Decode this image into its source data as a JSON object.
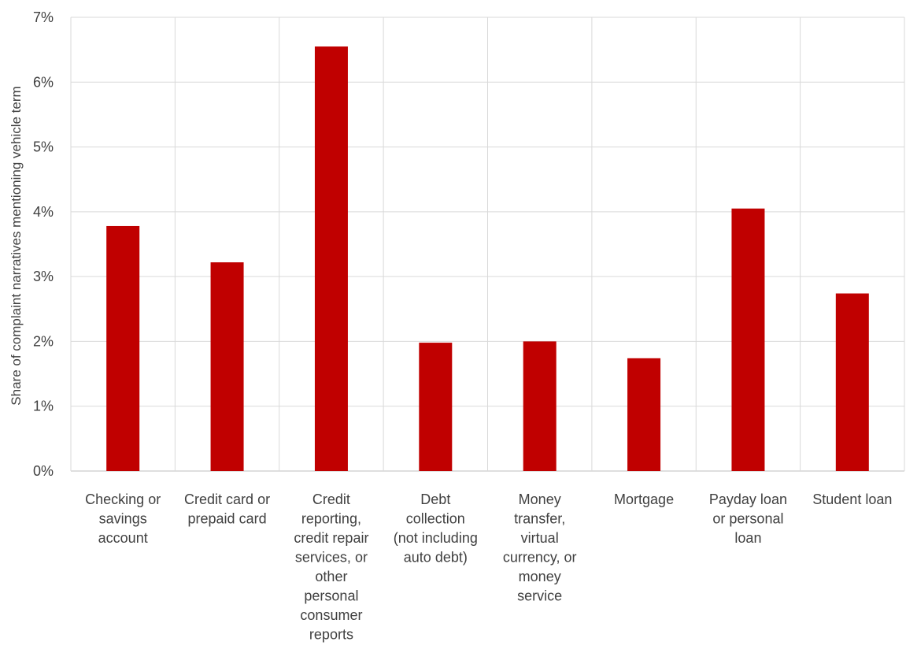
{
  "chart_data": {
    "type": "bar",
    "title": "",
    "xlabel": "",
    "ylabel": "Share of complaint narratives mentioning vehicle term",
    "ylim": [
      0,
      7
    ],
    "yticks": [
      "0%",
      "1%",
      "2%",
      "3%",
      "4%",
      "5%",
      "6%",
      "7%"
    ],
    "grid": true,
    "legend": "none",
    "colors": {
      "bar": "#c00000"
    },
    "categories": [
      "Checking or savings account",
      "Credit card or prepaid card",
      "Credit reporting, credit repair services, or other personal consumer reports",
      "Debt collection (not including auto debt)",
      "Money transfer, virtual currency, or money service",
      "Mortgage",
      "Payday loan or personal loan",
      "Student loan"
    ],
    "category_label_lines": [
      [
        "Checking or",
        "savings",
        "account"
      ],
      [
        "Credit card or",
        "prepaid card"
      ],
      [
        "Credit",
        "reporting,",
        "credit repair",
        "services, or",
        "other",
        "personal",
        "consumer",
        "reports"
      ],
      [
        "Debt",
        "collection",
        "(not including",
        "auto debt)"
      ],
      [
        "Money",
        "transfer,",
        "virtual",
        "currency, or",
        "money",
        "service"
      ],
      [
        "Mortgage"
      ],
      [
        "Payday loan",
        "or personal",
        "loan"
      ],
      [
        "Student loan"
      ]
    ],
    "values": [
      3.78,
      3.22,
      6.55,
      1.98,
      2.0,
      1.74,
      4.05,
      2.74
    ]
  }
}
